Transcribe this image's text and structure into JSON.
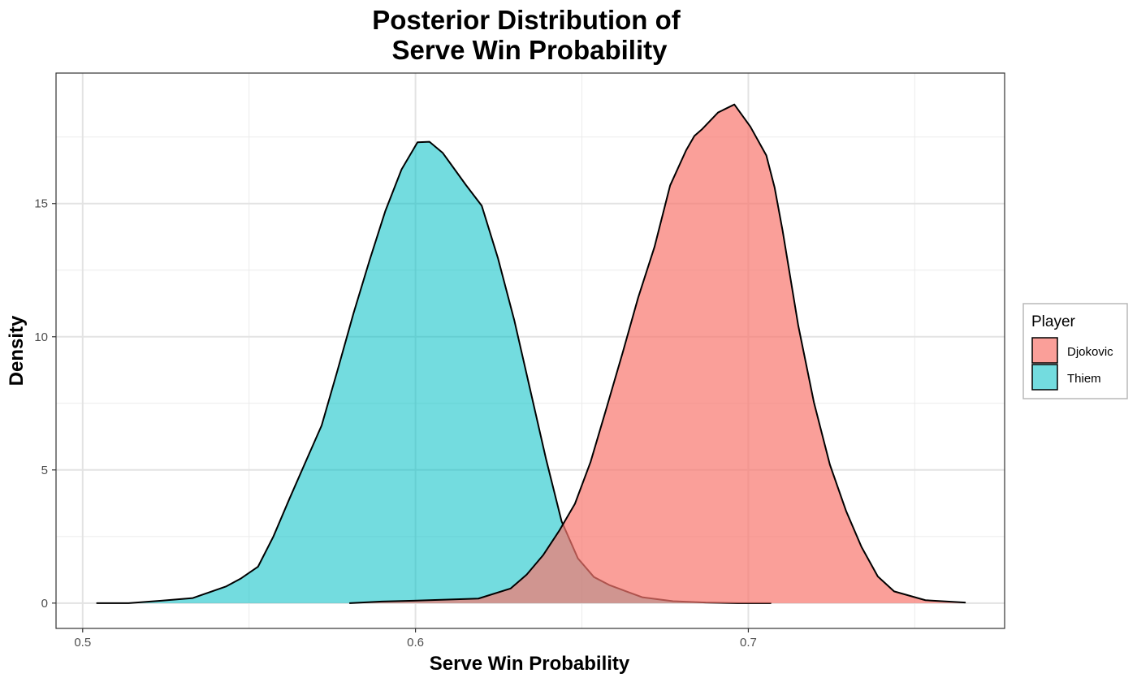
{
  "chart_data": {
    "type": "area",
    "subtype": "density",
    "title_lines": [
      "Posterior Distribution of",
      "Serve Win Probability"
    ],
    "xlabel": "Serve Win Probability",
    "ylabel": "Density",
    "xlim": [
      0.492,
      0.777
    ],
    "ylim": [
      -0.95,
      19.9
    ],
    "x_ticks": [
      0.5,
      0.6,
      0.7
    ],
    "x_tick_labels": [
      "0.5",
      "0.6",
      "0.7"
    ],
    "y_ticks": [
      0,
      5,
      10,
      15
    ],
    "y_tick_labels": [
      "0",
      "5",
      "10",
      "15"
    ],
    "grid": true,
    "legend": {
      "title": "Player",
      "position": "right"
    },
    "series": [
      {
        "name": "Djokovic",
        "color": "#F8766D",
        "fill_opacity": 0.7,
        "x": [
          0.5803,
          0.5899,
          0.5994,
          0.6189,
          0.6286,
          0.6334,
          0.6384,
          0.6432,
          0.6479,
          0.6526,
          0.6574,
          0.6623,
          0.6669,
          0.6718,
          0.6765,
          0.6813,
          0.6838,
          0.686,
          0.6909,
          0.6958,
          0.7006,
          0.7054,
          0.7079,
          0.7103,
          0.715,
          0.7197,
          0.7245,
          0.7294,
          0.734,
          0.7389,
          0.7438,
          0.7532,
          0.7651
        ],
        "y": [
          0.0,
          0.06,
          0.09,
          0.17,
          0.55,
          1.07,
          1.81,
          2.72,
          3.73,
          5.3,
          7.33,
          9.43,
          11.47,
          13.37,
          15.68,
          17.0,
          17.54,
          17.78,
          18.42,
          18.72,
          17.89,
          16.81,
          15.6,
          13.98,
          10.42,
          7.54,
          5.2,
          3.45,
          2.11,
          1.0,
          0.44,
          0.11,
          0.02
        ]
      },
      {
        "name": "Thiem",
        "color": "#00BFC4",
        "fill_opacity": 0.55,
        "x": [
          0.5043,
          0.5138,
          0.5236,
          0.5331,
          0.543,
          0.5476,
          0.5527,
          0.5573,
          0.5621,
          0.5669,
          0.5718,
          0.5765,
          0.5814,
          0.5862,
          0.5909,
          0.5958,
          0.6006,
          0.6042,
          0.6082,
          0.6104,
          0.6152,
          0.6199,
          0.6248,
          0.6297,
          0.6343,
          0.6392,
          0.6439,
          0.6488,
          0.6536,
          0.6582,
          0.6631,
          0.6681,
          0.6774,
          0.6872,
          0.6968,
          0.7067
        ],
        "y": [
          0.0,
          0.0,
          0.09,
          0.19,
          0.62,
          0.93,
          1.37,
          2.5,
          3.91,
          5.28,
          6.67,
          8.71,
          10.89,
          12.87,
          14.71,
          16.28,
          17.3,
          17.32,
          16.9,
          16.52,
          15.69,
          14.92,
          12.94,
          10.61,
          8.1,
          5.42,
          3.07,
          1.68,
          0.98,
          0.68,
          0.45,
          0.22,
          0.07,
          0.02,
          0.0,
          0.0
        ]
      }
    ]
  }
}
